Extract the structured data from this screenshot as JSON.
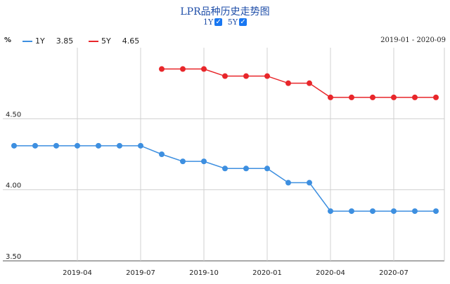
{
  "title": "LPR品种历史走势图",
  "toggles": [
    {
      "label": "1Y",
      "checked": true
    },
    {
      "label": "5Y",
      "checked": true
    }
  ],
  "check_glyph": "✓",
  "unit": "%",
  "legend": [
    {
      "name": "1Y",
      "value": "3.85",
      "color": "#3d8fe0"
    },
    {
      "name": "5Y",
      "value": "4.65",
      "color": "#e8262a"
    }
  ],
  "date_range": "2019-01 - 2020-09",
  "chart_data": {
    "type": "line",
    "x": [
      "2019-01",
      "2019-02",
      "2019-03",
      "2019-04",
      "2019-05",
      "2019-06",
      "2019-07",
      "2019-08",
      "2019-09",
      "2019-10",
      "2019-11",
      "2019-12",
      "2020-01",
      "2020-02",
      "2020-03",
      "2020-04",
      "2020-05",
      "2020-06",
      "2020-07",
      "2020-08",
      "2020-09"
    ],
    "series": [
      {
        "name": "1Y",
        "color": "#3d8fe0",
        "values": [
          4.31,
          4.31,
          4.31,
          4.31,
          4.31,
          4.31,
          4.31,
          4.25,
          4.2,
          4.2,
          4.15,
          4.15,
          4.15,
          4.05,
          4.05,
          3.85,
          3.85,
          3.85,
          3.85,
          3.85,
          3.85
        ]
      },
      {
        "name": "5Y",
        "color": "#e8262a",
        "values": [
          null,
          null,
          null,
          null,
          null,
          null,
          null,
          4.85,
          4.85,
          4.85,
          4.8,
          4.8,
          4.8,
          4.75,
          4.75,
          4.65,
          4.65,
          4.65,
          4.65,
          4.65,
          4.65
        ]
      }
    ],
    "x_ticks": [
      "2019-04",
      "2019-07",
      "2019-10",
      "2020-01",
      "2020-04",
      "2020-07"
    ],
    "y_ticks": [
      "3.50",
      "4.00",
      "4.50"
    ],
    "ylim": [
      3.5,
      5.0
    ],
    "grid": true
  }
}
